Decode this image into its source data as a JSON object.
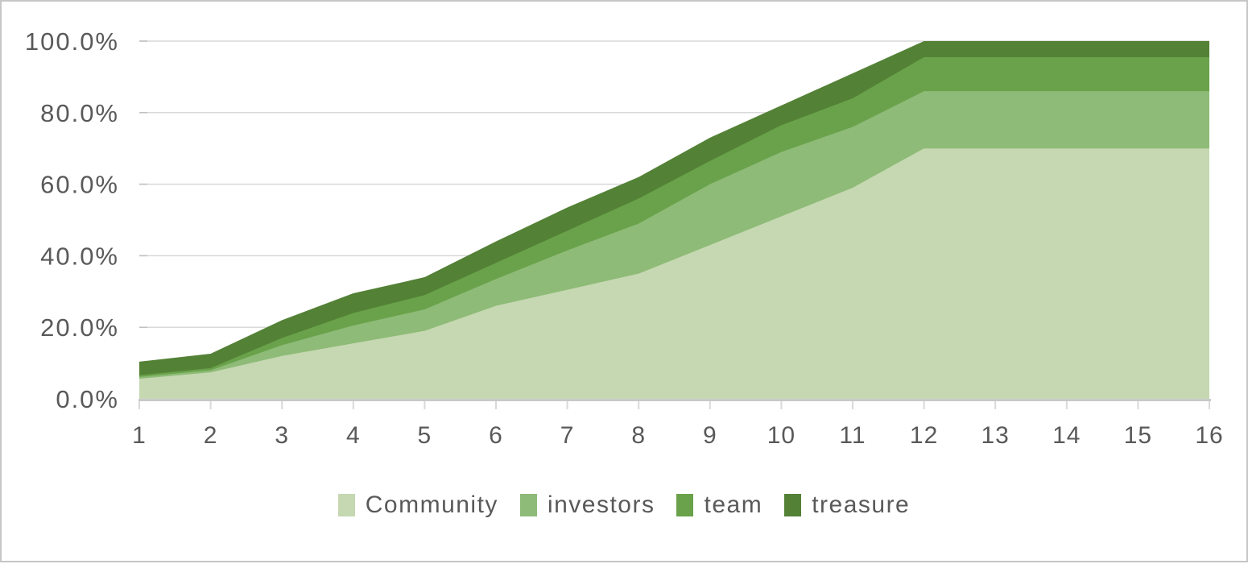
{
  "chart_data": {
    "type": "area",
    "stacked": true,
    "title": "",
    "xlabel": "",
    "ylabel": "",
    "x": [
      1,
      2,
      3,
      4,
      5,
      6,
      7,
      8,
      9,
      10,
      11,
      12,
      13,
      14,
      15,
      16
    ],
    "x_tick_labels": [
      "1",
      "2",
      "3",
      "4",
      "5",
      "6",
      "7",
      "8",
      "9",
      "10",
      "11",
      "12",
      "13",
      "14",
      "15",
      "16"
    ],
    "y_ticks": [
      0,
      20,
      40,
      60,
      80,
      100
    ],
    "y_tick_labels": [
      "0.0%",
      "20.0%",
      "40.0%",
      "60.0%",
      "80.0%",
      "100.0%"
    ],
    "ylim": [
      0,
      100
    ],
    "grid": true,
    "legend_position": "bottom",
    "series": [
      {
        "name": "Community",
        "color": "#C5D8B1",
        "values": [
          5.6,
          7.4,
          12,
          15.5,
          19,
          26,
          30.5,
          35,
          43,
          51,
          59,
          70,
          70,
          70,
          70,
          70
        ]
      },
      {
        "name": "investors",
        "color": "#8EBB77",
        "values": [
          0.5,
          0.6,
          3,
          5,
          6,
          7.5,
          11,
          14,
          17,
          18,
          17,
          16,
          16,
          16,
          16,
          16
        ]
      },
      {
        "name": "team",
        "color": "#69A24A",
        "values": [
          0.5,
          0.6,
          2,
          3.5,
          4,
          4.5,
          5.5,
          7,
          6.5,
          7.5,
          8,
          9.5,
          9.5,
          9.5,
          9.5,
          9.5
        ]
      },
      {
        "name": "treasure",
        "color": "#538135",
        "values": [
          3.8,
          4,
          5,
          5.5,
          5,
          6,
          6.5,
          6,
          6.5,
          5.5,
          7,
          4.5,
          4.5,
          4.5,
          4.5,
          4.5
        ]
      }
    ],
    "colors": {
      "axis_text": "#595959",
      "gridline": "#D9D9D9",
      "axis_line": "#BFBFBF",
      "tick_mark": "#D9D9D9"
    }
  }
}
